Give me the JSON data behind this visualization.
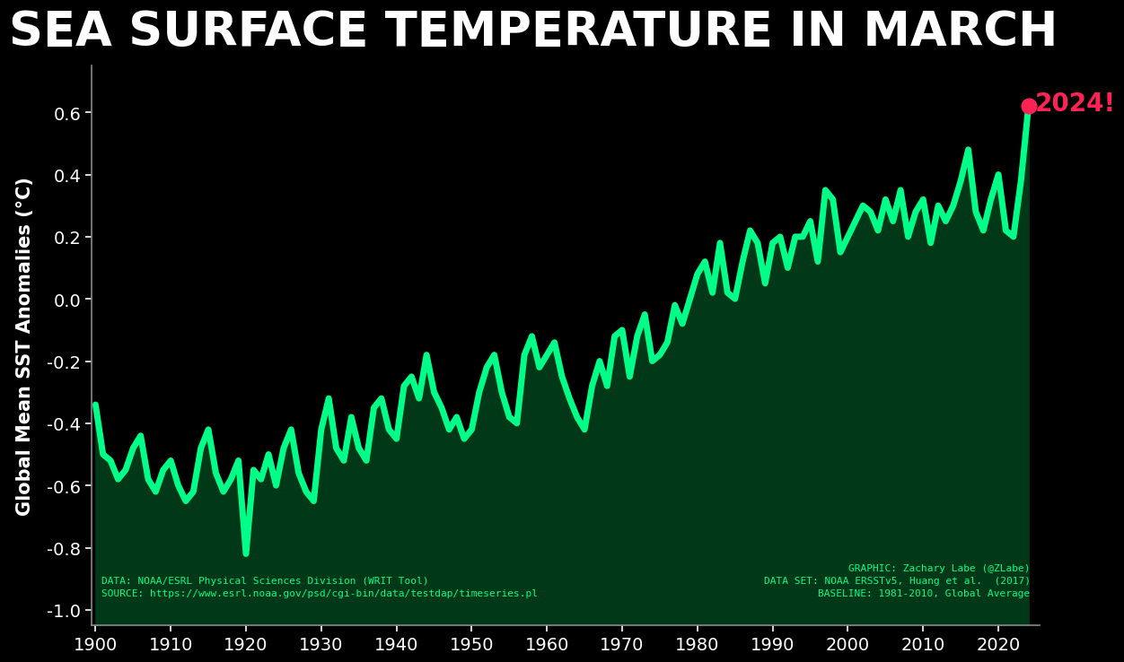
{
  "title": "SEA SURFACE TEMPERATURE IN MARCH",
  "ylabel": "Global Mean SST Anomalies (°C)",
  "background_color": "#000000",
  "plot_bg_color": "#000000",
  "line_color": "#00FF88",
  "fill_color": "#003818",
  "highlight_color": "#FF2255",
  "text_color": "#FFFFFF",
  "annotation_color": "#00FF88",
  "ylim": [
    -1.05,
    0.75
  ],
  "xlim": [
    1899.5,
    2025.5
  ],
  "yticks": [
    -1.0,
    -0.8,
    -0.6,
    -0.4,
    -0.2,
    0.0,
    0.2,
    0.4,
    0.6
  ],
  "xticks": [
    1900,
    1910,
    1920,
    1930,
    1940,
    1950,
    1960,
    1970,
    1980,
    1990,
    2000,
    2010,
    2020
  ],
  "title_fontsize": 38,
  "ylabel_fontsize": 15,
  "tick_fontsize": 14,
  "line_width": 5.0,
  "data_note_left": "DATA: NOAA/ESRL Physical Sciences Division (WRIT Tool)\nSOURCE: https://www.esrl.noaa.gov/psd/cgi-bin/data/testdap/timeseries.pl",
  "data_note_right": "GRAPHIC: Zachary Labe (@ZLabe)\nDATA SET: NOAA ERSSTv5, Huang et al.  (2017)\nBASELINE: 1981-2010, Global Average",
  "years": [
    1900,
    1901,
    1902,
    1903,
    1904,
    1905,
    1906,
    1907,
    1908,
    1909,
    1910,
    1911,
    1912,
    1913,
    1914,
    1915,
    1916,
    1917,
    1918,
    1919,
    1920,
    1921,
    1922,
    1923,
    1924,
    1925,
    1926,
    1927,
    1928,
    1929,
    1930,
    1931,
    1932,
    1933,
    1934,
    1935,
    1936,
    1937,
    1938,
    1939,
    1940,
    1941,
    1942,
    1943,
    1944,
    1945,
    1946,
    1947,
    1948,
    1949,
    1950,
    1951,
    1952,
    1953,
    1954,
    1955,
    1956,
    1957,
    1958,
    1959,
    1960,
    1961,
    1962,
    1963,
    1964,
    1965,
    1966,
    1967,
    1968,
    1969,
    1970,
    1971,
    1972,
    1973,
    1974,
    1975,
    1976,
    1977,
    1978,
    1979,
    1980,
    1981,
    1982,
    1983,
    1984,
    1985,
    1986,
    1987,
    1988,
    1989,
    1990,
    1991,
    1992,
    1993,
    1994,
    1995,
    1996,
    1997,
    1998,
    1999,
    2000,
    2001,
    2002,
    2003,
    2004,
    2005,
    2006,
    2007,
    2008,
    2009,
    2010,
    2011,
    2012,
    2013,
    2014,
    2015,
    2016,
    2017,
    2018,
    2019,
    2020,
    2021,
    2022,
    2023,
    2024
  ],
  "values": [
    -0.34,
    -0.5,
    -0.52,
    -0.58,
    -0.55,
    -0.48,
    -0.44,
    -0.58,
    -0.62,
    -0.55,
    -0.52,
    -0.6,
    -0.65,
    -0.62,
    -0.48,
    -0.42,
    -0.56,
    -0.62,
    -0.58,
    -0.52,
    -0.82,
    -0.55,
    -0.58,
    -0.5,
    -0.6,
    -0.48,
    -0.42,
    -0.56,
    -0.62,
    -0.65,
    -0.42,
    -0.32,
    -0.48,
    -0.52,
    -0.38,
    -0.48,
    -0.52,
    -0.35,
    -0.32,
    -0.42,
    -0.45,
    -0.28,
    -0.25,
    -0.32,
    -0.18,
    -0.3,
    -0.35,
    -0.42,
    -0.38,
    -0.45,
    -0.42,
    -0.3,
    -0.22,
    -0.18,
    -0.3,
    -0.38,
    -0.4,
    -0.18,
    -0.12,
    -0.22,
    -0.18,
    -0.14,
    -0.25,
    -0.32,
    -0.38,
    -0.42,
    -0.28,
    -0.2,
    -0.28,
    -0.12,
    -0.1,
    -0.25,
    -0.12,
    -0.05,
    -0.2,
    -0.18,
    -0.14,
    -0.02,
    -0.08,
    0.0,
    0.08,
    0.12,
    0.02,
    0.18,
    0.02,
    0.0,
    0.12,
    0.22,
    0.18,
    0.05,
    0.18,
    0.2,
    0.1,
    0.2,
    0.2,
    0.25,
    0.12,
    0.35,
    0.32,
    0.15,
    0.2,
    0.25,
    0.3,
    0.28,
    0.22,
    0.32,
    0.25,
    0.35,
    0.2,
    0.28,
    0.32,
    0.18,
    0.3,
    0.25,
    0.3,
    0.38,
    0.48,
    0.28,
    0.22,
    0.32,
    0.4,
    0.22,
    0.2,
    0.38,
    0.62
  ]
}
